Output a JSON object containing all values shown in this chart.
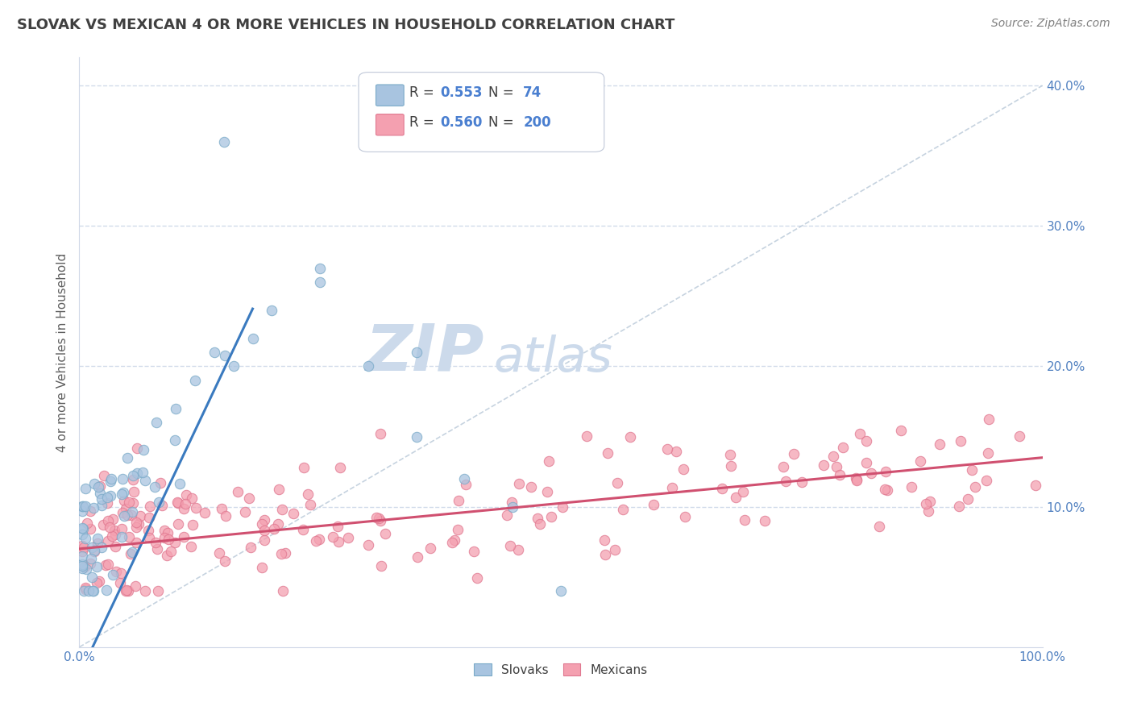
{
  "title": "SLOVAK VS MEXICAN 4 OR MORE VEHICLES IN HOUSEHOLD CORRELATION CHART",
  "source": "Source: ZipAtlas.com",
  "ylabel": "4 or more Vehicles in Household",
  "xlim": [
    0,
    100
  ],
  "ylim": [
    0,
    42
  ],
  "slovak_color": "#a8c4e0",
  "slovak_edge_color": "#7aaac8",
  "mexican_color": "#f4a0b0",
  "mexican_edge_color": "#e07890",
  "slovak_line_color": "#3a7abf",
  "mexican_line_color": "#d05070",
  "ref_line_color": "#b8c8d8",
  "legend_R_slovak": "0.553",
  "legend_N_slovak": "74",
  "legend_R_mexican": "0.560",
  "legend_N_mexican": "200",
  "watermark_zip": "ZIP",
  "watermark_atlas": "atlas",
  "watermark_color": "#ccdaeb",
  "background_color": "#ffffff",
  "grid_color": "#ccd8e8",
  "title_color": "#404040",
  "label_color": "#5080c0",
  "source_color": "#808080",
  "legend_value_color": "#4a7fd0",
  "legend_text_color": "#404040"
}
